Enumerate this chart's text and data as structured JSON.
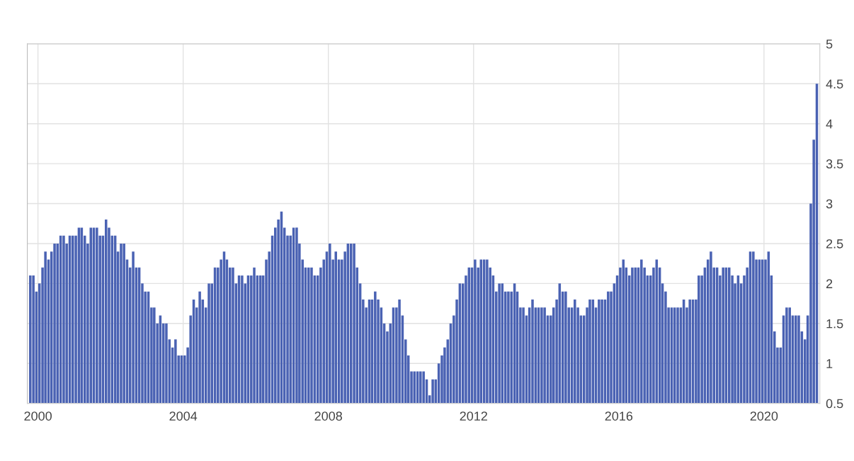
{
  "chart_data": {
    "type": "bar",
    "color": "#4a62b3",
    "x": [
      "1999-10",
      "1999-11",
      "1999-12",
      "2000-01",
      "2000-02",
      "2000-03",
      "2000-04",
      "2000-05",
      "2000-06",
      "2000-07",
      "2000-08",
      "2000-09",
      "2000-10",
      "2000-11",
      "2000-12",
      "2001-01",
      "2001-02",
      "2001-03",
      "2001-04",
      "2001-05",
      "2001-06",
      "2001-07",
      "2001-08",
      "2001-09",
      "2001-10",
      "2001-11",
      "2001-12",
      "2002-01",
      "2002-02",
      "2002-03",
      "2002-04",
      "2002-05",
      "2002-06",
      "2002-07",
      "2002-08",
      "2002-09",
      "2002-10",
      "2002-11",
      "2002-12",
      "2003-01",
      "2003-02",
      "2003-03",
      "2003-04",
      "2003-05",
      "2003-06",
      "2003-07",
      "2003-08",
      "2003-09",
      "2003-10",
      "2003-11",
      "2003-12",
      "2004-01",
      "2004-02",
      "2004-03",
      "2004-04",
      "2004-05",
      "2004-06",
      "2004-07",
      "2004-08",
      "2004-09",
      "2004-10",
      "2004-11",
      "2004-12",
      "2005-01",
      "2005-02",
      "2005-03",
      "2005-04",
      "2005-05",
      "2005-06",
      "2005-07",
      "2005-08",
      "2005-09",
      "2005-10",
      "2005-11",
      "2005-12",
      "2006-01",
      "2006-02",
      "2006-03",
      "2006-04",
      "2006-05",
      "2006-06",
      "2006-07",
      "2006-08",
      "2006-09",
      "2006-10",
      "2006-11",
      "2006-12",
      "2007-01",
      "2007-02",
      "2007-03",
      "2007-04",
      "2007-05",
      "2007-06",
      "2007-07",
      "2007-08",
      "2007-09",
      "2007-10",
      "2007-11",
      "2007-12",
      "2008-01",
      "2008-02",
      "2008-03",
      "2008-04",
      "2008-05",
      "2008-06",
      "2008-07",
      "2008-08",
      "2008-09",
      "2008-10",
      "2008-11",
      "2008-12",
      "2009-01",
      "2009-02",
      "2009-03",
      "2009-04",
      "2009-05",
      "2009-06",
      "2009-07",
      "2009-08",
      "2009-09",
      "2009-10",
      "2009-11",
      "2009-12",
      "2010-01",
      "2010-02",
      "2010-03",
      "2010-04",
      "2010-05",
      "2010-06",
      "2010-07",
      "2010-08",
      "2010-09",
      "2010-10",
      "2010-11",
      "2010-12",
      "2011-01",
      "2011-02",
      "2011-03",
      "2011-04",
      "2011-05",
      "2011-06",
      "2011-07",
      "2011-08",
      "2011-09",
      "2011-10",
      "2011-11",
      "2011-12",
      "2012-01",
      "2012-02",
      "2012-03",
      "2012-04",
      "2012-05",
      "2012-06",
      "2012-07",
      "2012-08",
      "2012-09",
      "2012-10",
      "2012-11",
      "2012-12",
      "2013-01",
      "2013-02",
      "2013-03",
      "2013-04",
      "2013-05",
      "2013-06",
      "2013-07",
      "2013-08",
      "2013-09",
      "2013-10",
      "2013-11",
      "2013-12",
      "2014-01",
      "2014-02",
      "2014-03",
      "2014-04",
      "2014-05",
      "2014-06",
      "2014-07",
      "2014-08",
      "2014-09",
      "2014-10",
      "2014-11",
      "2014-12",
      "2015-01",
      "2015-02",
      "2015-03",
      "2015-04",
      "2015-05",
      "2015-06",
      "2015-07",
      "2015-08",
      "2015-09",
      "2015-10",
      "2015-11",
      "2015-12",
      "2016-01",
      "2016-02",
      "2016-03",
      "2016-04",
      "2016-05",
      "2016-06",
      "2016-07",
      "2016-08",
      "2016-09",
      "2016-10",
      "2016-11",
      "2016-12",
      "2017-01",
      "2017-02",
      "2017-03",
      "2017-04",
      "2017-05",
      "2017-06",
      "2017-07",
      "2017-08",
      "2017-09",
      "2017-10",
      "2017-11",
      "2017-12",
      "2018-01",
      "2018-02",
      "2018-03",
      "2018-04",
      "2018-05",
      "2018-06",
      "2018-07",
      "2018-08",
      "2018-09",
      "2018-10",
      "2018-11",
      "2018-12",
      "2019-01",
      "2019-02",
      "2019-03",
      "2019-04",
      "2019-05",
      "2019-06",
      "2019-07",
      "2019-08",
      "2019-09",
      "2019-10",
      "2019-11",
      "2019-12",
      "2020-01",
      "2020-02",
      "2020-03",
      "2020-04",
      "2020-05",
      "2020-06",
      "2020-07",
      "2020-08",
      "2020-09",
      "2020-10",
      "2020-11",
      "2020-12",
      "2021-01",
      "2021-02",
      "2021-03",
      "2021-04",
      "2021-05",
      "2021-06"
    ],
    "values": [
      2.1,
      2.1,
      1.9,
      2.0,
      2.2,
      2.4,
      2.3,
      2.4,
      2.5,
      2.5,
      2.6,
      2.6,
      2.5,
      2.6,
      2.6,
      2.6,
      2.7,
      2.7,
      2.6,
      2.5,
      2.7,
      2.7,
      2.7,
      2.6,
      2.6,
      2.8,
      2.7,
      2.6,
      2.6,
      2.4,
      2.5,
      2.5,
      2.3,
      2.2,
      2.4,
      2.2,
      2.2,
      2.0,
      1.9,
      1.9,
      1.7,
      1.7,
      1.5,
      1.6,
      1.5,
      1.5,
      1.3,
      1.2,
      1.3,
      1.1,
      1.1,
      1.1,
      1.2,
      1.6,
      1.8,
      1.7,
      1.9,
      1.8,
      1.7,
      2.0,
      2.0,
      2.2,
      2.2,
      2.3,
      2.4,
      2.3,
      2.2,
      2.2,
      2.0,
      2.1,
      2.1,
      2.0,
      2.1,
      2.1,
      2.2,
      2.1,
      2.1,
      2.1,
      2.3,
      2.4,
      2.6,
      2.7,
      2.8,
      2.9,
      2.7,
      2.6,
      2.6,
      2.7,
      2.7,
      2.5,
      2.3,
      2.2,
      2.2,
      2.2,
      2.1,
      2.1,
      2.2,
      2.3,
      2.4,
      2.5,
      2.3,
      2.4,
      2.3,
      2.3,
      2.4,
      2.5,
      2.5,
      2.5,
      2.2,
      2.0,
      1.8,
      1.7,
      1.8,
      1.8,
      1.9,
      1.8,
      1.7,
      1.5,
      1.4,
      1.5,
      1.7,
      1.7,
      1.8,
      1.6,
      1.3,
      1.1,
      0.9,
      0.9,
      0.9,
      0.9,
      0.9,
      0.8,
      0.6,
      0.8,
      0.8,
      1.0,
      1.1,
      1.2,
      1.3,
      1.5,
      1.6,
      1.8,
      2.0,
      2.0,
      2.1,
      2.2,
      2.2,
      2.3,
      2.2,
      2.3,
      2.3,
      2.3,
      2.2,
      2.1,
      1.9,
      2.0,
      2.0,
      1.9,
      1.9,
      1.9,
      2.0,
      1.9,
      1.7,
      1.7,
      1.6,
      1.7,
      1.8,
      1.7,
      1.7,
      1.7,
      1.7,
      1.6,
      1.6,
      1.7,
      1.8,
      2.0,
      1.9,
      1.9,
      1.7,
      1.7,
      1.8,
      1.7,
      1.6,
      1.6,
      1.7,
      1.8,
      1.8,
      1.7,
      1.8,
      1.8,
      1.8,
      1.9,
      1.9,
      2.0,
      2.1,
      2.2,
      2.3,
      2.2,
      2.1,
      2.2,
      2.2,
      2.2,
      2.3,
      2.2,
      2.1,
      2.1,
      2.2,
      2.3,
      2.2,
      2.0,
      1.9,
      1.7,
      1.7,
      1.7,
      1.7,
      1.7,
      1.8,
      1.7,
      1.8,
      1.8,
      1.8,
      2.1,
      2.1,
      2.2,
      2.3,
      2.4,
      2.2,
      2.2,
      2.1,
      2.2,
      2.2,
      2.2,
      2.1,
      2.0,
      2.1,
      2.0,
      2.1,
      2.2,
      2.4,
      2.4,
      2.3,
      2.3,
      2.3,
      2.3,
      2.4,
      2.1,
      1.4,
      1.2,
      1.2,
      1.6,
      1.7,
      1.7,
      1.6,
      1.6,
      1.6,
      1.4,
      1.3,
      1.6,
      3.0,
      3.8,
      4.5
    ],
    "xlim": [
      "1999-09-16",
      "2021-07-16"
    ],
    "xticks": [
      {
        "value": "2000-01",
        "label": "2000"
      },
      {
        "value": "2004-01",
        "label": "2004"
      },
      {
        "value": "2008-01",
        "label": "2008"
      },
      {
        "value": "2012-01",
        "label": "2012"
      },
      {
        "value": "2016-01",
        "label": "2016"
      },
      {
        "value": "2020-01",
        "label": "2020"
      }
    ],
    "ylim": [
      0.5,
      5
    ],
    "yticks": [
      0.5,
      1,
      1.5,
      2,
      2.5,
      3,
      3.5,
      4,
      4.5,
      5
    ],
    "grid": true,
    "legend": false
  }
}
